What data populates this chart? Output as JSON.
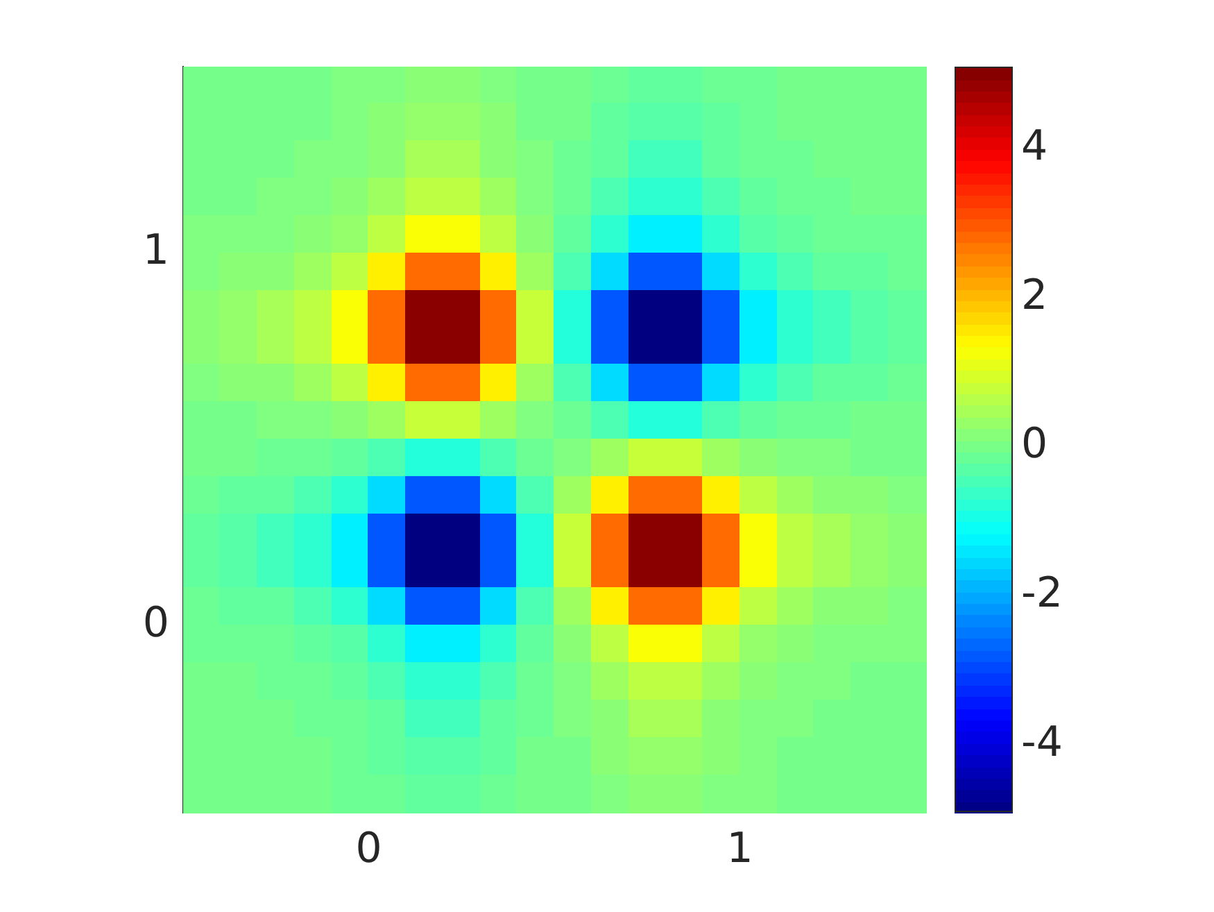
{
  "chart_data": {
    "type": "heatmap",
    "xlim": [
      -0.5,
      1.5
    ],
    "ylim": [
      -0.5,
      1.5
    ],
    "xticks": [
      0,
      1
    ],
    "yticks": [
      0,
      1
    ],
    "clim": [
      -4.9,
      5.1
    ],
    "cticks": [
      -4,
      -2,
      0,
      2,
      4
    ],
    "cells": [
      [
        0,
        0,
        0,
        0,
        0.1,
        0.1,
        0.2,
        0.2,
        0.1,
        0,
        0,
        -0.1,
        -0.2,
        -0.2,
        -0.1,
        -0.1,
        0,
        0,
        0,
        0
      ],
      [
        0,
        0,
        0,
        0,
        0.1,
        0.2,
        0.3,
        0.3,
        0.2,
        0,
        0,
        -0.2,
        -0.3,
        -0.3,
        -0.2,
        -0.1,
        0,
        0,
        0,
        0
      ],
      [
        0,
        0,
        0,
        0.1,
        0.1,
        0.2,
        0.5,
        0.5,
        0.2,
        0.1,
        -0.1,
        -0.2,
        -0.5,
        -0.5,
        -0.2,
        -0.1,
        -0.1,
        0,
        0,
        0
      ],
      [
        0,
        0,
        0.1,
        0.1,
        0.2,
        0.4,
        0.7,
        0.7,
        0.4,
        0.1,
        -0.1,
        -0.4,
        -0.7,
        -0.7,
        -0.4,
        -0.2,
        -0.1,
        -0.1,
        0,
        0
      ],
      [
        0.1,
        0.1,
        0.1,
        0.2,
        0.3,
        0.7,
        1.3,
        1.3,
        0.7,
        0.2,
        -0.2,
        -0.7,
        -1.3,
        -1.3,
        -0.7,
        -0.3,
        -0.2,
        -0.1,
        -0.1,
        -0.1
      ],
      [
        0.1,
        0.2,
        0.2,
        0.4,
        0.7,
        1.5,
        2.8,
        2.8,
        1.5,
        0.4,
        -0.4,
        -1.5,
        -2.8,
        -2.8,
        -1.5,
        -0.7,
        -0.4,
        -0.2,
        -0.2,
        -0.1
      ],
      [
        0.2,
        0.3,
        0.5,
        0.7,
        1.3,
        2.8,
        5,
        5,
        2.8,
        0.8,
        -0.8,
        -2.8,
        -5,
        -5,
        -2.8,
        -1.3,
        -0.7,
        -0.5,
        -0.3,
        -0.2
      ],
      [
        0.2,
        0.3,
        0.5,
        0.7,
        1.3,
        2.8,
        5,
        5,
        2.8,
        0.8,
        -0.8,
        -2.8,
        -5,
        -5,
        -2.8,
        -1.3,
        -0.7,
        -0.5,
        -0.3,
        -0.2
      ],
      [
        0.1,
        0.2,
        0.2,
        0.4,
        0.7,
        1.5,
        2.8,
        2.8,
        1.5,
        0.4,
        -0.4,
        -1.5,
        -2.8,
        -2.8,
        -1.5,
        -0.7,
        -0.4,
        -0.2,
        -0.2,
        -0.1
      ],
      [
        0,
        0,
        0.1,
        0.1,
        0.2,
        0.4,
        0.8,
        0.8,
        0.4,
        0.1,
        -0.1,
        -0.4,
        -0.8,
        -0.8,
        -0.4,
        -0.2,
        -0.1,
        -0.1,
        0,
        0
      ],
      [
        0,
        0,
        -0.1,
        -0.1,
        -0.2,
        -0.4,
        -0.8,
        -0.8,
        -0.4,
        -0.1,
        0.1,
        0.4,
        0.8,
        0.8,
        0.4,
        0.2,
        0.1,
        0.1,
        0,
        0
      ],
      [
        -0.1,
        -0.2,
        -0.2,
        -0.4,
        -0.7,
        -1.5,
        -2.8,
        -2.8,
        -1.5,
        -0.4,
        0.4,
        1.5,
        2.8,
        2.8,
        1.5,
        0.7,
        0.4,
        0.2,
        0.2,
        0.1
      ],
      [
        -0.2,
        -0.3,
        -0.5,
        -0.7,
        -1.3,
        -2.8,
        -5,
        -5,
        -2.8,
        -0.8,
        0.8,
        2.8,
        5,
        5,
        2.8,
        1.3,
        0.7,
        0.5,
        0.3,
        0.2
      ],
      [
        -0.2,
        -0.3,
        -0.5,
        -0.7,
        -1.3,
        -2.8,
        -5,
        -5,
        -2.8,
        -0.8,
        0.8,
        2.8,
        5,
        5,
        2.8,
        1.3,
        0.7,
        0.5,
        0.3,
        0.2
      ],
      [
        -0.1,
        -0.2,
        -0.2,
        -0.4,
        -0.7,
        -1.5,
        -2.8,
        -2.8,
        -1.5,
        -0.4,
        0.4,
        1.5,
        2.8,
        2.8,
        1.5,
        0.7,
        0.4,
        0.2,
        0.2,
        0.1
      ],
      [
        -0.1,
        -0.1,
        -0.1,
        -0.2,
        -0.3,
        -0.7,
        -1.3,
        -1.3,
        -0.7,
        -0.2,
        0.2,
        0.7,
        1.3,
        1.3,
        0.7,
        0.3,
        0.2,
        0.1,
        0.1,
        0.1
      ],
      [
        0,
        0,
        -0.1,
        -0.1,
        -0.2,
        -0.4,
        -0.7,
        -0.7,
        -0.4,
        -0.1,
        0.1,
        0.4,
        0.7,
        0.7,
        0.4,
        0.2,
        0.1,
        0.1,
        0,
        0
      ],
      [
        0,
        0,
        0,
        -0.1,
        -0.1,
        -0.2,
        -0.5,
        -0.5,
        -0.2,
        -0.1,
        0.1,
        0.2,
        0.5,
        0.5,
        0.2,
        0.1,
        0.1,
        0,
        0,
        0
      ],
      [
        0,
        0,
        0,
        0,
        -0.1,
        -0.2,
        -0.3,
        -0.3,
        -0.2,
        0,
        0,
        0.2,
        0.3,
        0.3,
        0.2,
        0.1,
        0,
        0,
        0,
        0
      ],
      [
        0,
        0,
        0,
        0,
        -0.1,
        -0.1,
        -0.2,
        -0.2,
        -0.1,
        0,
        0,
        0.1,
        0.2,
        0.2,
        0.1,
        0.1,
        0,
        0,
        0,
        0
      ]
    ]
  }
}
